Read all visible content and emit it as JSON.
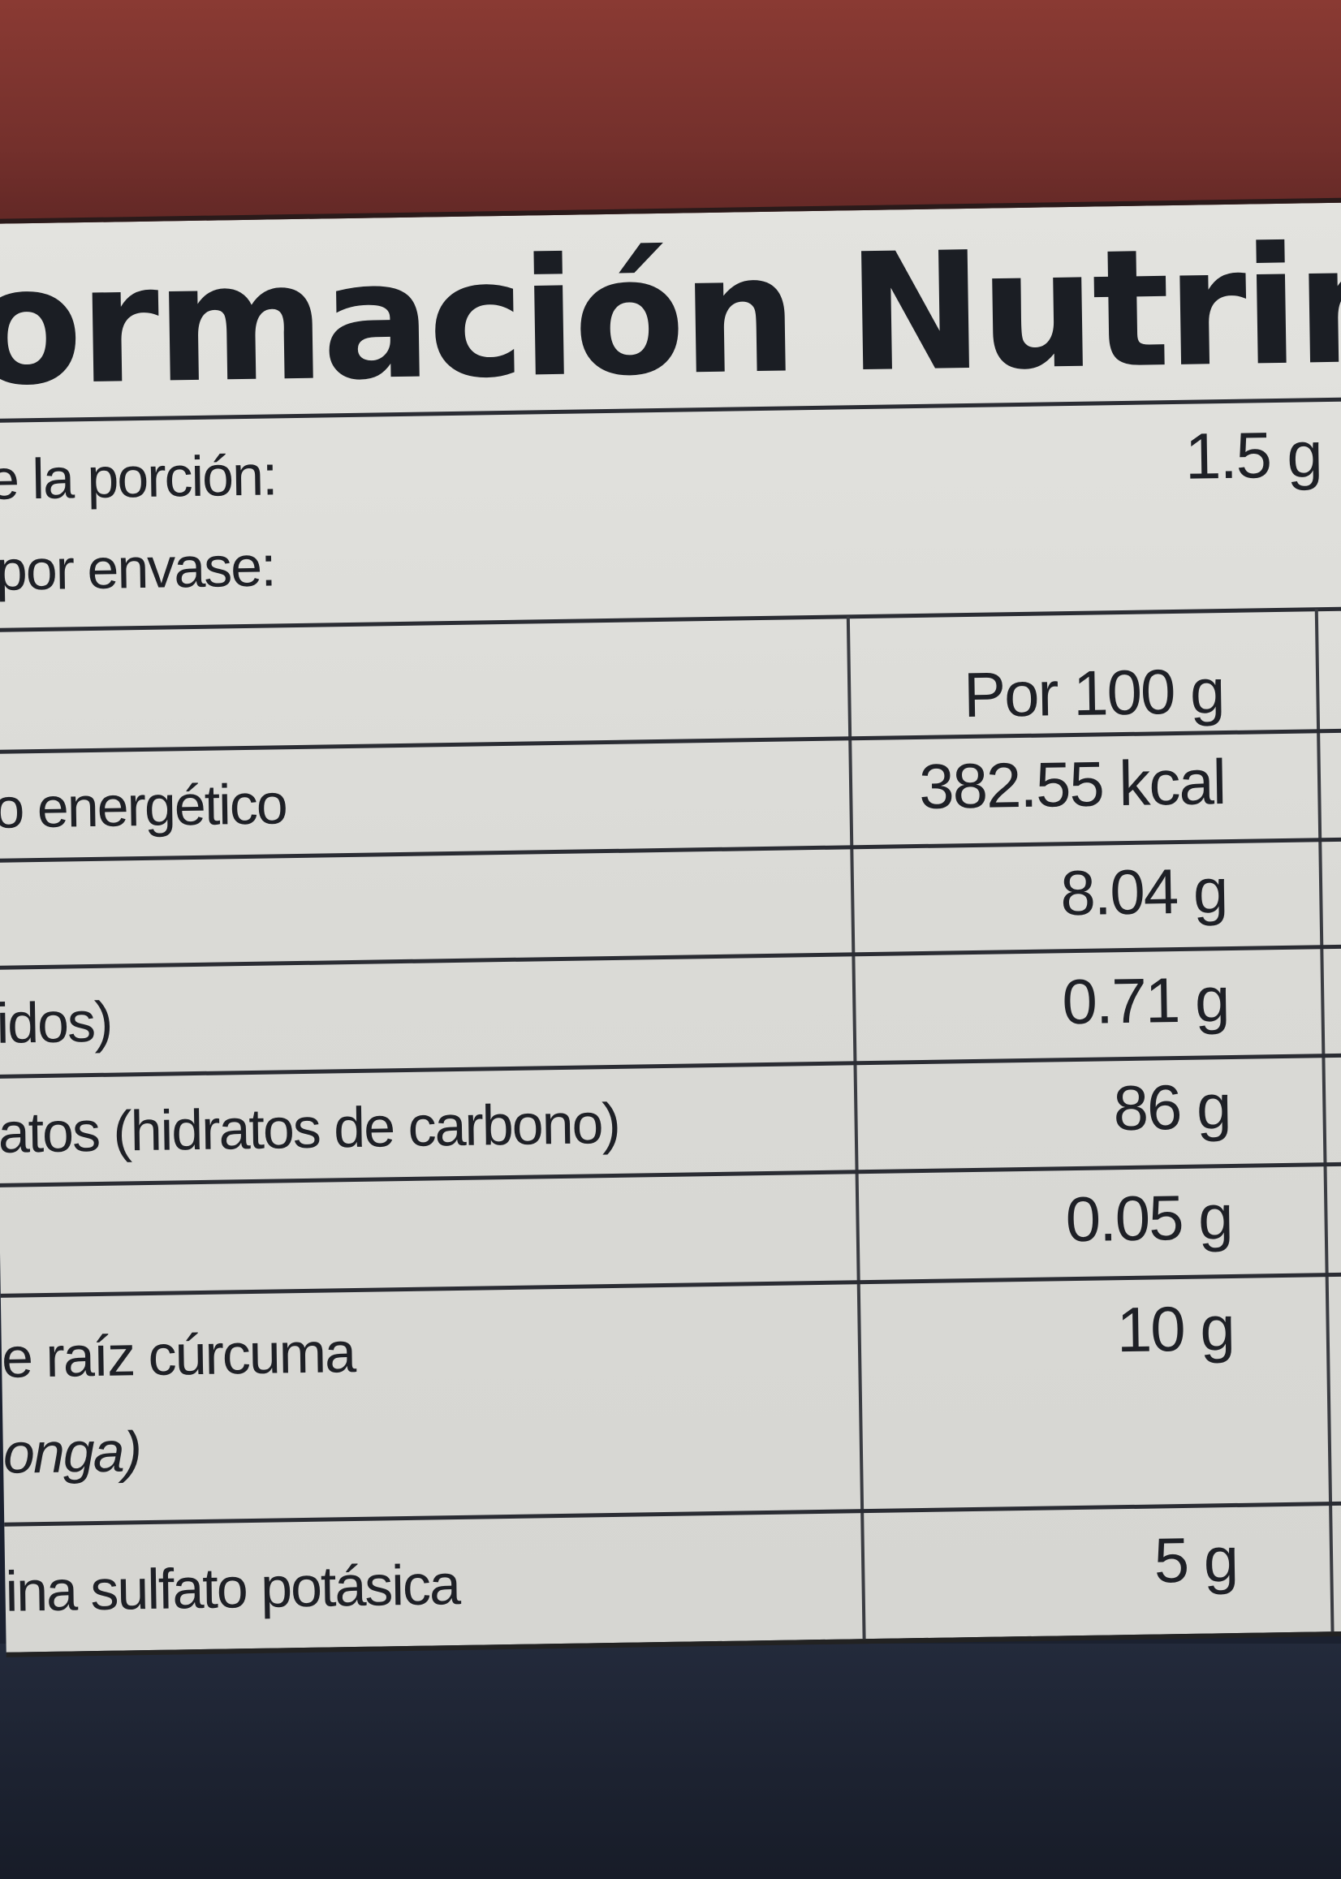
{
  "label": {
    "title": "ormación Nutrime",
    "serving_size_label": "e la porción:",
    "serving_size_value": "1.5 g (",
    "servings_per_container_label": "por envase:",
    "table": {
      "column_header": "Por 100 g",
      "rows": [
        {
          "name": "o energético",
          "value": "382.55 kcal"
        },
        {
          "name": "",
          "value": "8.04 g"
        },
        {
          "name": "idos)",
          "value": "0.71 g"
        },
        {
          "name": "atos (hidratos de carbono)",
          "value": "86 g"
        },
        {
          "name": "",
          "value": "0.05 g"
        },
        {
          "name": "e raíz cúrcuma",
          "name_line2": "onga)",
          "value": "10 g"
        },
        {
          "name": "ina sulfato potásica",
          "value": "5 g"
        }
      ]
    }
  },
  "colors": {
    "top_band": "#7a2f2b",
    "label_background": "#dcdcd8",
    "bottom_band": "#1b2130",
    "text": "#1e2026"
  }
}
